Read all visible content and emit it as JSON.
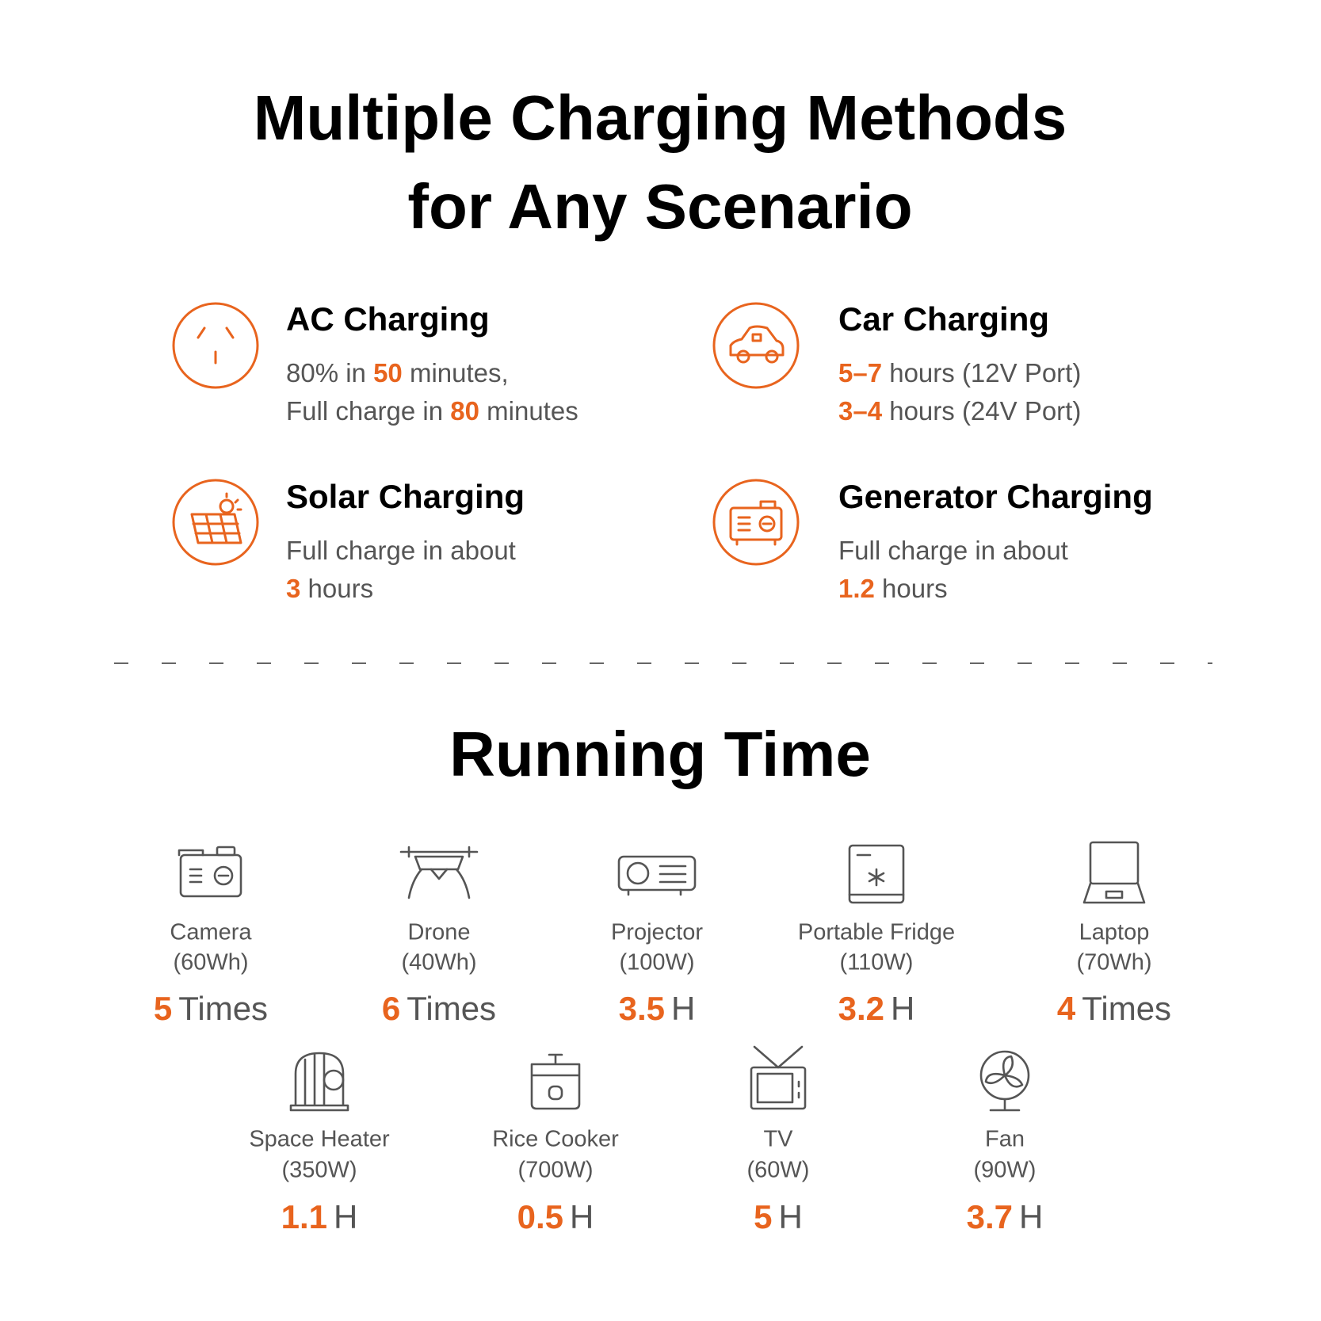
{
  "header": {
    "title_line1": "Multiple Charging Methods",
    "title_line2": "for Any Scenario"
  },
  "charging": [
    {
      "title": "AC Charging",
      "lines": [
        [
          {
            "text": "80% in ",
            "emphasis": false
          },
          {
            "text": "50",
            "emphasis": true
          },
          {
            "text": " minutes,",
            "emphasis": false
          }
        ],
        [
          {
            "text": "Full charge in ",
            "emphasis": false
          },
          {
            "text": "80",
            "emphasis": true
          },
          {
            "text": " minutes",
            "emphasis": false
          }
        ]
      ]
    },
    {
      "title": "Car Charging",
      "lines": [
        [
          {
            "text": "5–7",
            "emphasis": true
          },
          {
            "text": " hours (12V Port)",
            "emphasis": false
          }
        ],
        [
          {
            "text": "3–4",
            "emphasis": true
          },
          {
            "text": " hours (24V Port)",
            "emphasis": false
          }
        ]
      ]
    },
    {
      "title": "Solar Charging",
      "lines": [
        [
          {
            "text": "Full charge in about",
            "emphasis": false
          }
        ],
        [
          {
            "text": "3",
            "emphasis": true
          },
          {
            "text": " hours",
            "emphasis": false
          }
        ]
      ]
    },
    {
      "title": "Generator Charging",
      "lines": [
        [
          {
            "text": "Full charge in about",
            "emphasis": false
          }
        ],
        [
          {
            "text": "1.2",
            "emphasis": true
          },
          {
            "text": " hours",
            "emphasis": false
          }
        ]
      ]
    }
  ],
  "running_time": {
    "title": "Running Time",
    "items": [
      {
        "name": "Camera",
        "spec": "(60Wh)",
        "value": "5",
        "unit": "Times"
      },
      {
        "name": "Drone",
        "spec": "(40Wh)",
        "value": "6",
        "unit": "Times"
      },
      {
        "name": "Projector",
        "spec": "(100W)",
        "value": "3.5",
        "unit": "H"
      },
      {
        "name": "Portable Fridge",
        "spec": "(110W)",
        "value": "3.2",
        "unit": "H"
      },
      {
        "name": "Laptop",
        "spec": "(70Wh)",
        "value": "4",
        "unit": "Times"
      },
      {
        "name": "Space Heater",
        "spec": "(350W)",
        "value": "1.1",
        "unit": "H"
      },
      {
        "name": "Rice Cooker",
        "spec": "(700W)",
        "value": "0.5",
        "unit": "H"
      },
      {
        "name": "TV",
        "spec": "(60W)",
        "value": "5",
        "unit": "H"
      },
      {
        "name": "Fan",
        "spec": "(90W)",
        "value": "3.7",
        "unit": "H"
      }
    ]
  }
}
